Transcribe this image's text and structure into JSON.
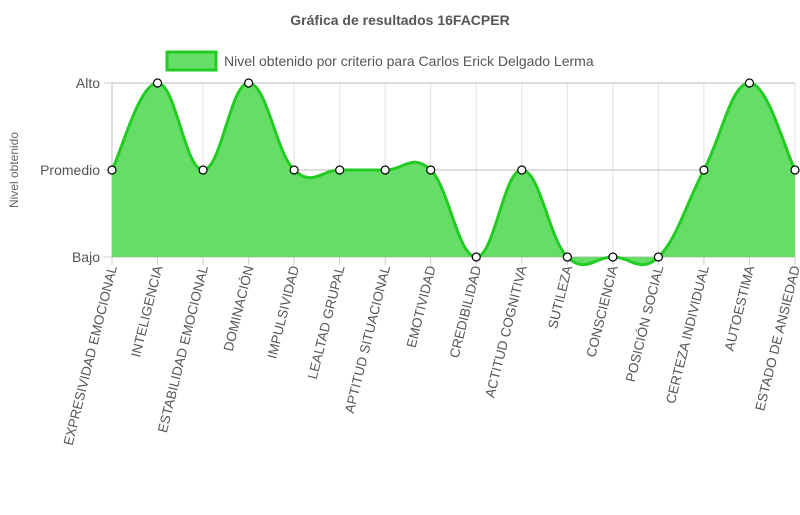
{
  "chart_data": {
    "type": "line",
    "title": "Gráfica de resultados 16FACPER",
    "ylabel": "Nivel obtenido",
    "xlabel": "",
    "y_levels": [
      "Bajo",
      "Promedio",
      "Alto"
    ],
    "categories": [
      "EXPRESIVIDAD EMOCIONAL",
      "INTELIGENCIA",
      "ESTABILIDAD EMOCIONAL",
      "DOMINACIÓN",
      "IMPULSIVIDAD",
      "LEALTAD GRUPAL",
      "APTITUD SITUACIONAL",
      "EMOTIVIDAD",
      "CREDIBILIDAD",
      "ACTITUD COGNITIVA",
      "SUTILEZA",
      "CONSCIENCIA",
      "POSICIÓN SOCIAL",
      "CERTEZA INDIVIDUAL",
      "AUTOESTIMA",
      "ESTADO DE ANSIEDAD"
    ],
    "series": [
      {
        "name": "Nivel obtenido por criterio para Carlos Erick Delgado Lerma",
        "values": [
          1,
          2,
          1,
          2,
          1,
          1,
          1,
          1,
          0,
          1,
          0,
          0,
          0,
          1,
          2,
          1
        ],
        "fill_color": "#66dd66",
        "line_color": "#22cc22"
      }
    ],
    "ylim": [
      0,
      2
    ],
    "grid": true,
    "legend": "top"
  }
}
